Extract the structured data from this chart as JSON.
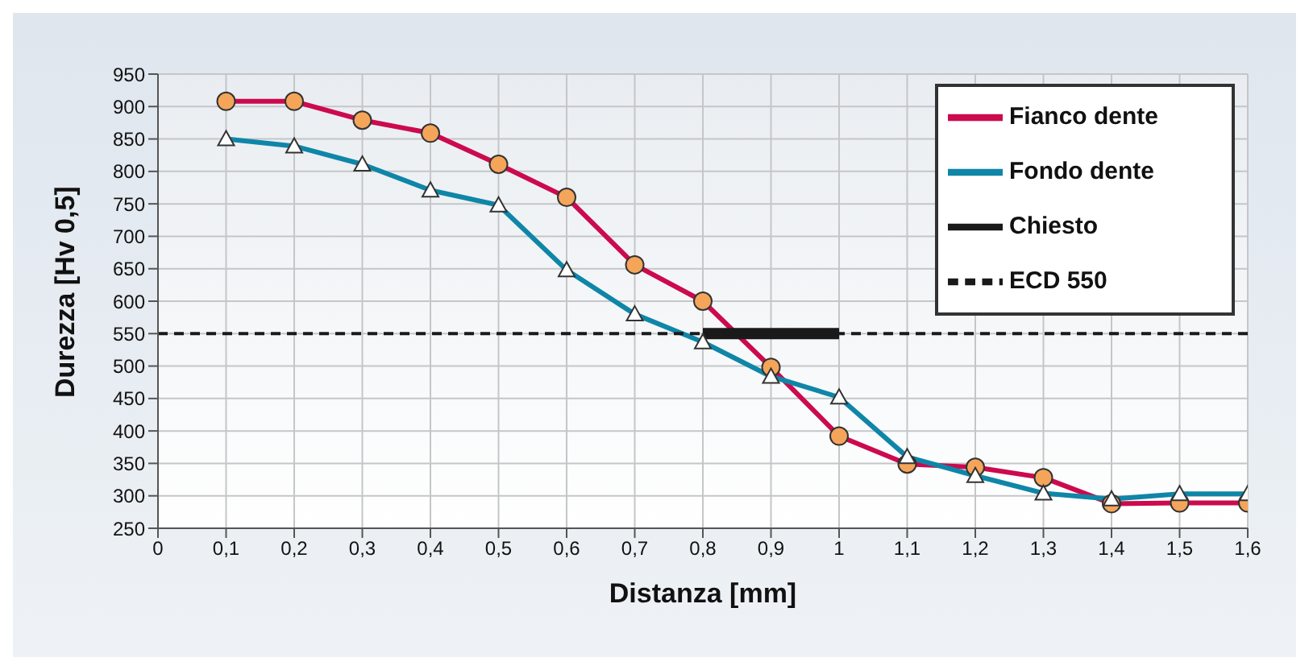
{
  "chart_data": {
    "type": "line",
    "xlabel": "Distanza [mm]",
    "ylabel": "Durezza [Hv 0,5]",
    "xlim": [
      0,
      1.6
    ],
    "xticks": [
      {
        "value": 0,
        "label": "0"
      },
      {
        "value": 0.1,
        "label": "0,1"
      },
      {
        "value": 0.2,
        "label": "0,2"
      },
      {
        "value": 0.3,
        "label": "0,3"
      },
      {
        "value": 0.4,
        "label": "0,4"
      },
      {
        "value": 0.5,
        "label": "0,5"
      },
      {
        "value": 0.6,
        "label": "0,6"
      },
      {
        "value": 0.7,
        "label": "0,7"
      },
      {
        "value": 0.8,
        "label": "0,8"
      },
      {
        "value": 0.9,
        "label": "0,9"
      },
      {
        "value": 1,
        "label": "1"
      },
      {
        "value": 1.1,
        "label": "1,1"
      },
      {
        "value": 1.2,
        "label": "1,2"
      },
      {
        "value": 1.3,
        "label": "1,3"
      },
      {
        "value": 1.4,
        "label": "1,4"
      },
      {
        "value": 1.5,
        "label": "1,5"
      },
      {
        "value": 1.6,
        "label": "1,6"
      }
    ],
    "ylim": [
      250,
      950
    ],
    "yticks": [
      250,
      300,
      350,
      400,
      450,
      500,
      550,
      600,
      650,
      700,
      750,
      800,
      850,
      900,
      950
    ],
    "grid": true,
    "legend": "top right",
    "series": [
      {
        "name": "Fianco dente",
        "color": "#cc0a4e",
        "marker": "circle",
        "x": [
          0.1,
          0.2,
          0.3,
          0.4,
          0.5,
          0.6,
          0.7,
          0.8,
          0.9,
          1,
          1.1,
          1.2,
          1.3,
          1.4,
          1.5,
          1.6
        ],
        "values": [
          908,
          908,
          879,
          859,
          811,
          760,
          656,
          600,
          498,
          392,
          349,
          344,
          328,
          288,
          289,
          289
        ]
      },
      {
        "name": "Fondo dente",
        "color": "#0f86a8",
        "marker": "triangle",
        "x": [
          0.1,
          0.2,
          0.3,
          0.4,
          0.5,
          0.6,
          0.7,
          0.8,
          0.9,
          1,
          1.1,
          1.2,
          1.3,
          1.4,
          1.5,
          1.6
        ],
        "values": [
          850,
          839,
          811,
          771,
          748,
          648,
          580,
          537,
          484,
          452,
          360,
          331,
          304,
          295,
          303,
          303
        ]
      },
      {
        "name": "Chiesto",
        "color": "#1a1a1a",
        "marker": "none",
        "x": [
          0.8,
          1
        ],
        "values": [
          550,
          550
        ]
      },
      {
        "name": "ECD 550",
        "color": "#1a1a1a",
        "marker": "none",
        "line_style": "dashed",
        "x": [
          0,
          1.6
        ],
        "values": [
          550,
          550
        ]
      }
    ]
  }
}
